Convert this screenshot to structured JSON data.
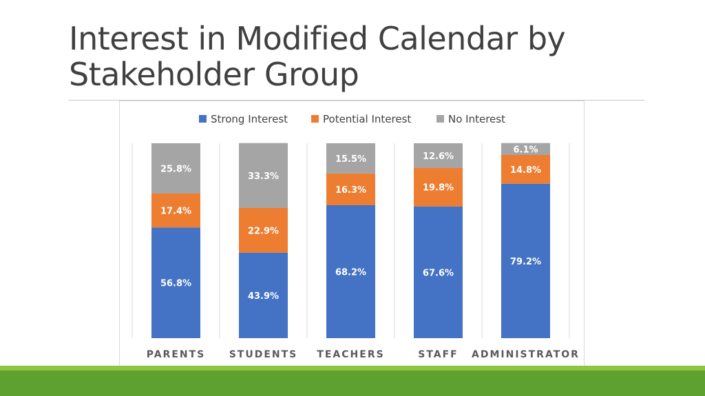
{
  "slide": {
    "title": "Interest in Modified Calendar by Stakeholder Group"
  },
  "colors": {
    "strong": "#4472c4",
    "potential": "#ed7d31",
    "none": "#a5a5a5",
    "footer_light": "#8dc63f",
    "footer_dark": "#5fa131"
  },
  "chart_data": {
    "type": "bar",
    "stacked": true,
    "normalized": "percent",
    "title": "",
    "xlabel": "",
    "ylabel": "",
    "ylim": [
      0,
      100
    ],
    "legend_position": "top",
    "grid": false,
    "categories": [
      "PARENTS",
      "STUDENTS",
      "TEACHERS",
      "STAFF",
      "ADMINISTRATOR"
    ],
    "series": [
      {
        "name": "Strong Interest",
        "values": [
          56.8,
          43.9,
          68.2,
          67.6,
          79.2
        ],
        "labels": [
          "56.8%",
          "43.9%",
          "68.2%",
          "67.6%",
          "79.2%"
        ],
        "color": "#4472c4"
      },
      {
        "name": "Potential Interest",
        "values": [
          17.4,
          22.9,
          16.3,
          19.8,
          14.8
        ],
        "labels": [
          "17.4%",
          "22.9%",
          "16.3%",
          "19.8%",
          "14.8%"
        ],
        "color": "#ed7d31"
      },
      {
        "name": "No Interest",
        "values": [
          25.8,
          33.3,
          15.5,
          12.6,
          6.1
        ],
        "labels": [
          "25.8%",
          "33.3%",
          "15.5%",
          "12.6%",
          "6.1%"
        ],
        "color": "#a5a5a5"
      }
    ]
  }
}
